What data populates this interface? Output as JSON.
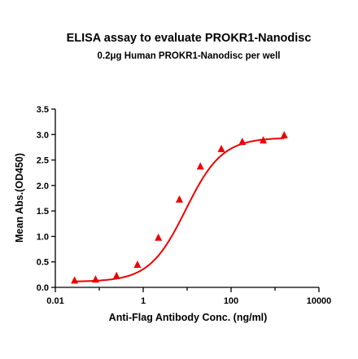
{
  "chart_data": {
    "type": "scatter",
    "title": "ELISA assay to evaluate PROKR1-Nanodisc",
    "subtitle": "0.2μg Human PROKR1-Nanodisc per well",
    "xlabel": "Anti-Flag Antibody Conc. (ng/ml)",
    "ylabel": "Mean Abs.(OD450)",
    "x_scale": "log",
    "xlim": [
      0.01,
      10000
    ],
    "ylim": [
      0,
      3.5
    ],
    "x_ticks": [
      0.01,
      1,
      100,
      10000
    ],
    "x_tick_labels": [
      "0.01",
      "1",
      "100",
      "10000"
    ],
    "y_ticks": [
      0,
      0.5,
      1,
      1.5,
      2,
      2.5,
      3,
      3.5
    ],
    "y_tick_labels": [
      "0.0",
      "0.5",
      "1.0",
      "1.5",
      "2.0",
      "2.5",
      "3.0",
      "3.5"
    ],
    "grid": false,
    "legend": "none",
    "color": "#ee0000",
    "marker": "triangle",
    "series": [
      {
        "x": [
          0.0274,
          0.0823,
          0.247,
          0.741,
          2.22,
          6.67,
          20,
          60,
          180,
          540,
          1620
        ],
        "y": [
          0.13,
          0.15,
          0.22,
          0.44,
          0.97,
          1.72,
          2.37,
          2.71,
          2.85,
          2.88,
          2.98
        ]
      }
    ],
    "fit_curve": {
      "model": "4PL",
      "bottom": 0.11,
      "top": 2.94,
      "ec50": 9.3,
      "hill": 1.05
    }
  }
}
